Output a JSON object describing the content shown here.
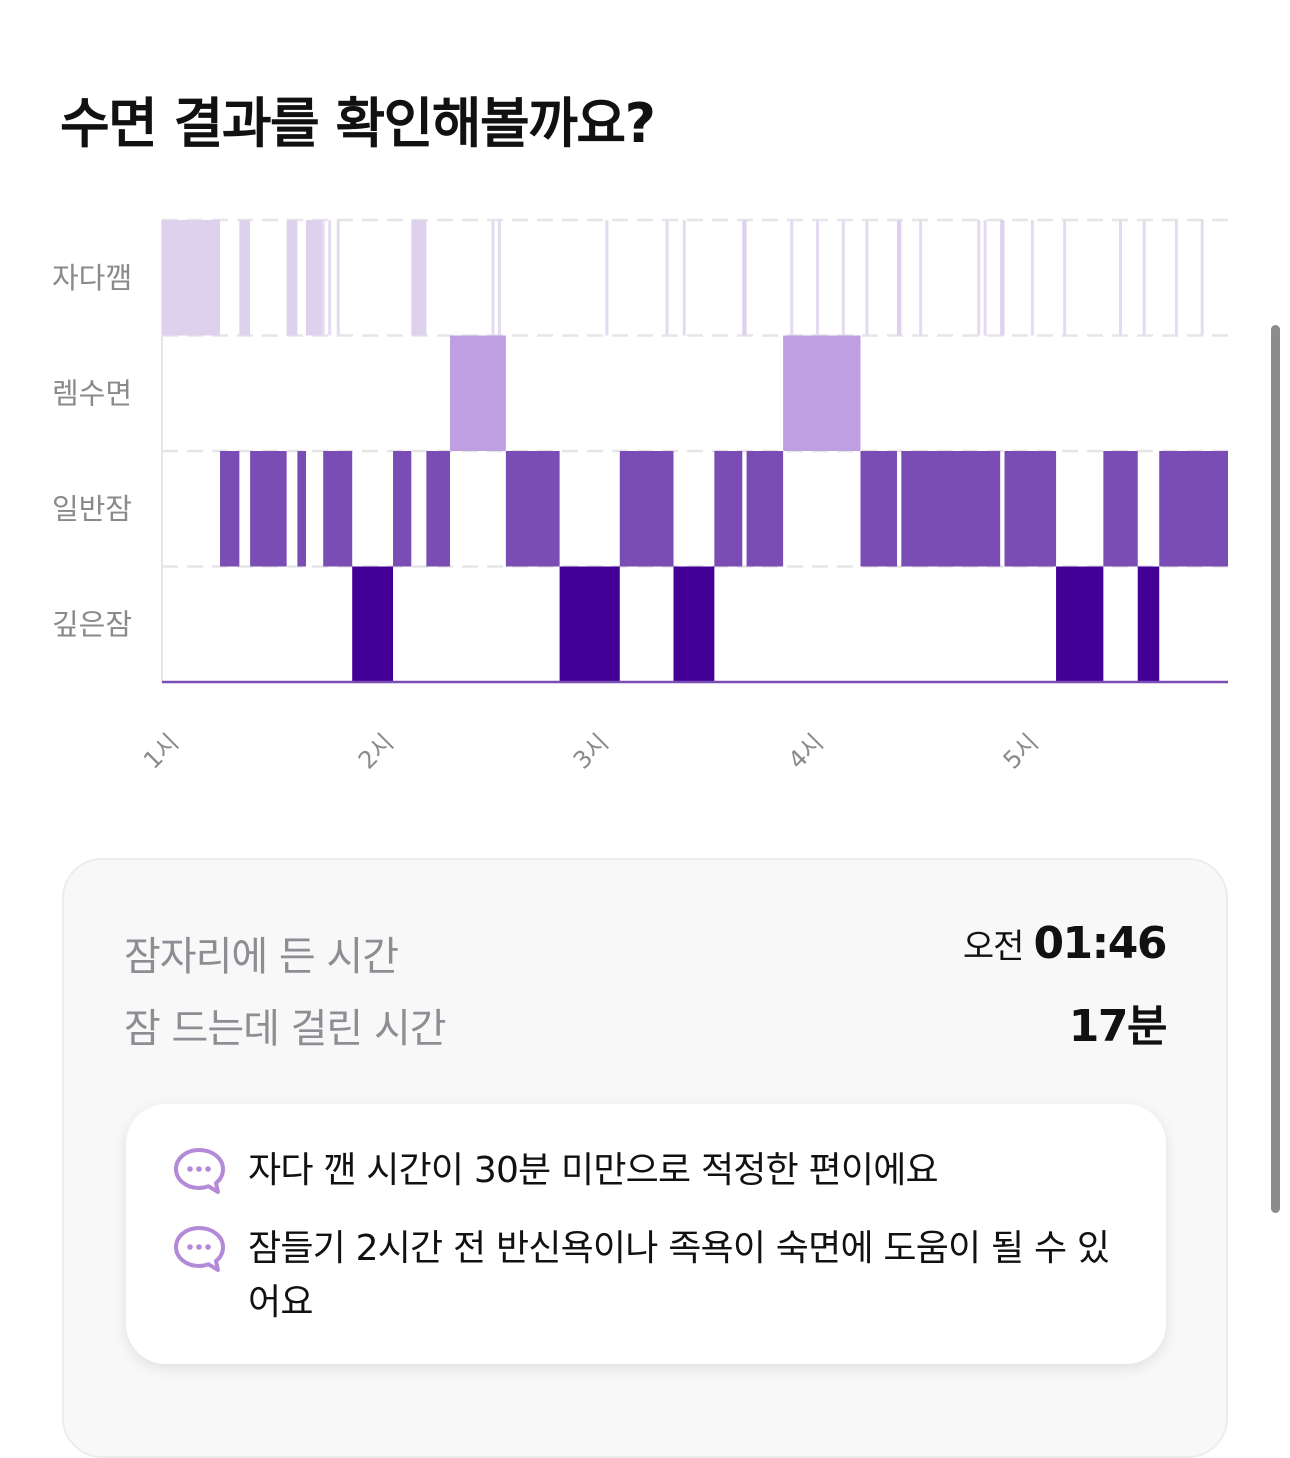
{
  "page": {
    "title": "수면 결과를 확인해볼까요?"
  },
  "colors": {
    "awake": "#ddd1ee",
    "awake_line": "#e4dbf1",
    "rem": "#be9fe2",
    "light": "#7a4db5",
    "deep": "#420096",
    "gridline": "#e6e6e6",
    "axis": "#7a4db5",
    "tick_label": "#8a8a8a",
    "tip_icon": "#b48ad8"
  },
  "chart_data": {
    "type": "hypnogram",
    "x_axis": {
      "unit": "hour (clock time)",
      "range_hours": [
        1.0,
        5.96
      ],
      "ticks": [
        {
          "label": "1시",
          "value": 1
        },
        {
          "label": "2시",
          "value": 2
        },
        {
          "label": "3시",
          "value": 3
        },
        {
          "label": "4시",
          "value": 4
        },
        {
          "label": "5시",
          "value": 5
        }
      ]
    },
    "stages": [
      "자다깸",
      "렘수면",
      "일반잠",
      "깊은잠"
    ],
    "grid": "dashed horizontal lines between stage rows",
    "segments": [
      {
        "stage": "자다깸",
        "start": 1.0,
        "end": 1.27
      },
      {
        "stage": "일반잠",
        "start": 1.27,
        "end": 1.36
      },
      {
        "stage": "자다깸",
        "start": 1.36,
        "end": 1.41
      },
      {
        "stage": "일반잠",
        "start": 1.41,
        "end": 1.58
      },
      {
        "stage": "자다깸",
        "start": 1.58,
        "end": 1.63
      },
      {
        "stage": "일반잠",
        "start": 1.63,
        "end": 1.67
      },
      {
        "stage": "자다깸",
        "start": 1.67,
        "end": 1.75
      },
      {
        "stage": "일반잠",
        "start": 1.75,
        "end": 1.885
      },
      {
        "stage": "깊은잠",
        "start": 1.885,
        "end": 2.075
      },
      {
        "stage": "일반잠",
        "start": 2.075,
        "end": 2.16
      },
      {
        "stage": "자다깸",
        "start": 2.16,
        "end": 2.23
      },
      {
        "stage": "일반잠",
        "start": 2.23,
        "end": 2.34
      },
      {
        "stage": "렘수면",
        "start": 2.34,
        "end": 2.6
      },
      {
        "stage": "일반잠",
        "start": 2.6,
        "end": 2.85
      },
      {
        "stage": "깊은잠",
        "start": 2.85,
        "end": 3.13
      },
      {
        "stage": "일반잠",
        "start": 3.13,
        "end": 3.38
      },
      {
        "stage": "깊은잠",
        "start": 3.38,
        "end": 3.57
      },
      {
        "stage": "일반잠",
        "start": 3.57,
        "end": 3.7
      },
      {
        "stage": "자다깸",
        "start": 3.7,
        "end": 3.72
      },
      {
        "stage": "일반잠",
        "start": 3.72,
        "end": 3.89
      },
      {
        "stage": "렘수면",
        "start": 3.89,
        "end": 4.25
      },
      {
        "stage": "일반잠",
        "start": 4.25,
        "end": 4.42
      },
      {
        "stage": "자다깸",
        "start": 4.42,
        "end": 4.44
      },
      {
        "stage": "일반잠",
        "start": 4.44,
        "end": 4.9
      },
      {
        "stage": "자다깸",
        "start": 4.9,
        "end": 4.92
      },
      {
        "stage": "일반잠",
        "start": 4.92,
        "end": 5.16
      },
      {
        "stage": "깊은잠",
        "start": 5.16,
        "end": 5.38
      },
      {
        "stage": "일반잠",
        "start": 5.38,
        "end": 5.54
      },
      {
        "stage": "깊은잠",
        "start": 5.54,
        "end": 5.64
      },
      {
        "stage": "일반잠",
        "start": 5.64,
        "end": 5.96
      }
    ],
    "awake_marks": [
      1.75,
      1.78,
      1.82,
      2.54,
      2.57,
      3.07,
      3.35,
      3.43,
      3.93,
      4.05,
      4.17,
      4.28,
      4.53,
      4.8,
      4.83,
      5.05,
      5.2,
      5.46,
      5.57,
      5.72,
      5.84
    ]
  },
  "summary": {
    "rows": [
      {
        "label": "잠자리에 든 시간",
        "prefix": "오전",
        "value": "01:46"
      },
      {
        "label": "잠 드는데 걸린 시간",
        "prefix": "",
        "value": "17분"
      }
    ],
    "tips": [
      {
        "icon": "chat-bubble-icon",
        "text": "자다 깬 시간이 30분 미만으로 적정한 편이에요"
      },
      {
        "icon": "chat-bubble-icon",
        "text": "잠들기 2시간 전 반신욕이나 족욕이 숙면에 도움이 될 수 있어요"
      }
    ]
  }
}
